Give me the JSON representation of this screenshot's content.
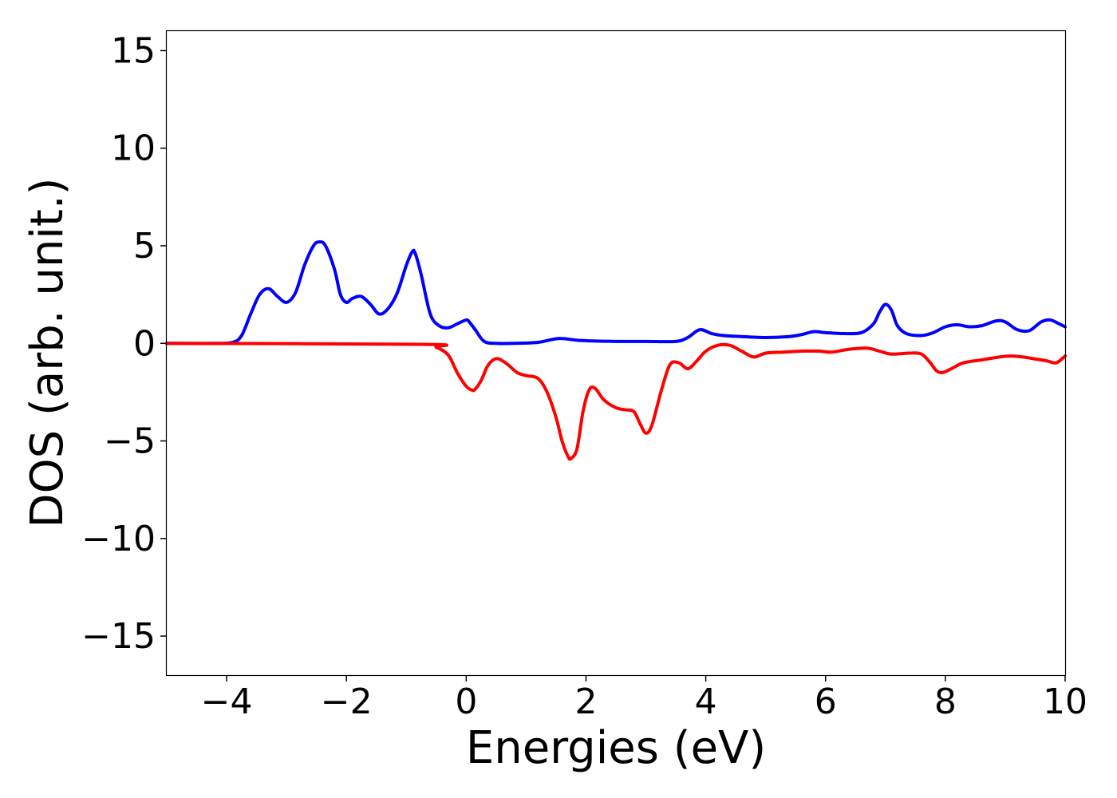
{
  "chart_data": {
    "type": "line",
    "title": "",
    "xlabel": "Energies (eV)",
    "ylabel": "DOS (arb. unit.)",
    "xlim": [
      -5,
      10
    ],
    "ylim": [
      -17,
      16
    ],
    "grid": false,
    "legend": "none",
    "x_ticks": [
      -4,
      -2,
      0,
      2,
      4,
      6,
      8,
      10
    ],
    "x_tick_labels": [
      "−4",
      "−2",
      "0",
      "2",
      "4",
      "6",
      "8",
      "10"
    ],
    "y_ticks": [
      15,
      10,
      5,
      0,
      -5,
      -10,
      -15
    ],
    "y_tick_labels": [
      "15",
      "10",
      "5",
      "0",
      "−5",
      "−10",
      "−15"
    ],
    "series": [
      {
        "color": "#0000ff",
        "x": [
          -5,
          -4.2,
          -3.9,
          -3.75,
          -3.6,
          -3.45,
          -3.3,
          -3.15,
          -3.0,
          -2.85,
          -2.7,
          -2.55,
          -2.45,
          -2.35,
          -2.2,
          -2.1,
          -2.0,
          -1.9,
          -1.75,
          -1.6,
          -1.45,
          -1.3,
          -1.15,
          -1.0,
          -0.9,
          -0.85,
          -0.75,
          -0.6,
          -0.45,
          -0.3,
          -0.15,
          0.0,
          0.05,
          0.15,
          0.3,
          0.5,
          0.8,
          1.2,
          1.55,
          1.9,
          2.5,
          3.0,
          3.5,
          3.7,
          3.9,
          4.1,
          4.3,
          4.6,
          5.0,
          5.4,
          5.6,
          5.8,
          6.0,
          6.3,
          6.6,
          6.8,
          6.9,
          7.0,
          7.1,
          7.2,
          7.35,
          7.6,
          7.8,
          8.0,
          8.2,
          8.4,
          8.6,
          8.85,
          9.0,
          9.2,
          9.4,
          9.6,
          9.75,
          9.9,
          10.0
        ],
        "y": [
          0,
          0,
          0.05,
          0.4,
          1.5,
          2.5,
          2.8,
          2.4,
          2.1,
          2.6,
          4.0,
          5.0,
          5.2,
          5.0,
          3.8,
          2.5,
          2.1,
          2.3,
          2.4,
          2.0,
          1.5,
          1.8,
          2.6,
          4.0,
          4.7,
          4.6,
          3.5,
          1.5,
          0.9,
          0.8,
          1.0,
          1.2,
          1.1,
          0.7,
          0.1,
          0.0,
          0.0,
          0.05,
          0.25,
          0.15,
          0.1,
          0.1,
          0.1,
          0.3,
          0.7,
          0.5,
          0.4,
          0.35,
          0.3,
          0.35,
          0.45,
          0.6,
          0.55,
          0.5,
          0.55,
          1.0,
          1.6,
          2.0,
          1.7,
          0.9,
          0.5,
          0.4,
          0.55,
          0.85,
          0.95,
          0.85,
          0.9,
          1.15,
          1.1,
          0.7,
          0.65,
          1.1,
          1.2,
          1.0,
          0.85
        ]
      },
      {
        "color": "#ff0000",
        "x": [
          -5,
          -0.7,
          -0.5,
          -0.3,
          -0.15,
          0.0,
          0.1,
          0.15,
          0.25,
          0.35,
          0.45,
          0.55,
          0.7,
          0.85,
          1.0,
          1.2,
          1.35,
          1.5,
          1.6,
          1.7,
          1.75,
          1.85,
          1.95,
          2.05,
          2.15,
          2.3,
          2.5,
          2.65,
          2.8,
          2.9,
          3.0,
          3.1,
          3.25,
          3.4,
          3.55,
          3.7,
          3.85,
          4.0,
          4.2,
          4.4,
          4.6,
          4.8,
          5.0,
          5.3,
          5.6,
          5.9,
          6.1,
          6.4,
          6.7,
          6.9,
          7.1,
          7.4,
          7.6,
          7.75,
          7.85,
          7.95,
          8.1,
          8.3,
          8.6,
          8.9,
          9.1,
          9.3,
          9.5,
          9.7,
          9.85,
          10.0
        ],
        "y": [
          0,
          -0.05,
          -0.2,
          -0.6,
          -1.5,
          -2.2,
          -2.4,
          -2.35,
          -1.9,
          -1.2,
          -0.85,
          -0.8,
          -1.1,
          -1.5,
          -1.65,
          -1.8,
          -2.5,
          -3.8,
          -5.0,
          -5.8,
          -5.9,
          -5.4,
          -3.5,
          -2.4,
          -2.3,
          -2.9,
          -3.3,
          -3.4,
          -3.5,
          -4.1,
          -4.6,
          -4.2,
          -2.5,
          -1.1,
          -1.0,
          -1.3,
          -0.9,
          -0.4,
          -0.1,
          -0.1,
          -0.4,
          -0.7,
          -0.5,
          -0.45,
          -0.4,
          -0.4,
          -0.45,
          -0.3,
          -0.25,
          -0.4,
          -0.55,
          -0.5,
          -0.55,
          -1.0,
          -1.4,
          -1.5,
          -1.3,
          -1.0,
          -0.85,
          -0.7,
          -0.65,
          -0.7,
          -0.8,
          -0.9,
          -1.0,
          -0.65
        ]
      }
    ]
  }
}
